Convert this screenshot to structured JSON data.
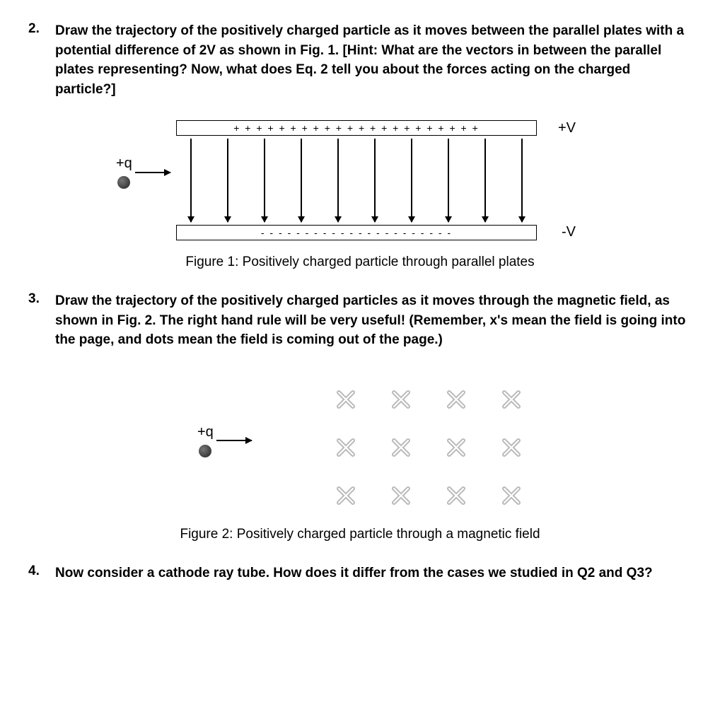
{
  "q2": {
    "num": "2.",
    "text": "Draw the trajectory of the positively charged particle as it moves between the parallel plates with a potential difference of 2V as shown in Fig. 1. [Hint: What are the vectors in between the parallel plates representing? Now, what does Eq. 2 tell you about the forces acting on the charged particle?]"
  },
  "fig1": {
    "positive_row": "+ + + + + + + + + + + + + + + + + + + + + +",
    "negative_row": "-  -  -  -  -  -  -  -  -  -  -  -  -  -  -  -  -  -  -  -  -  -",
    "top_label": "+V",
    "bot_label": "-V",
    "particle_label": "+q",
    "arrow_count": 10,
    "caption": "Figure 1: Positively charged particle through parallel plates"
  },
  "q3": {
    "num": "3.",
    "text": "Draw the trajectory of the positively charged particles as it moves through the magnetic field, as shown in Fig. 2. The right hand rule will be very useful! (Remember, x's mean the field is going into the page, and dots mean the field is coming out of the page.)"
  },
  "fig2": {
    "particle_label": "+q",
    "rows": 3,
    "cols": 4,
    "caption": "Figure 2: Positively charged particle through a magnetic field"
  },
  "q4": {
    "num": "4.",
    "text": "Now consider a cathode ray tube. How does it differ from the cases we studied in Q2 and Q3?"
  },
  "style": {
    "text_color": "#000000",
    "background": "#ffffff",
    "x_stroke": "#b8b8b8",
    "particle_fill": "#333333"
  }
}
